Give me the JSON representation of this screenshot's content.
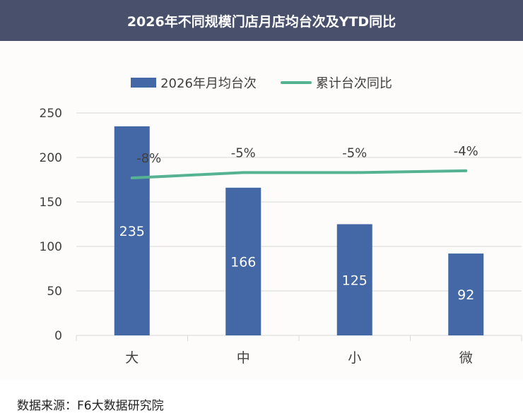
{
  "title": "2026年不同规模门店月店均台次及YTD同比",
  "source": "数据来源：F6大数据研究院",
  "colors": {
    "bar": "#4468a5",
    "line": "#55b393",
    "title_bg": "#48506b",
    "grid": "#d9d9d9"
  },
  "chart_data": {
    "type": "bar",
    "title": "2026年不同规模门店月店均台次及YTD同比",
    "categories": [
      "大",
      "中",
      "小",
      "微"
    ],
    "ylim": [
      0,
      250
    ],
    "yticks": [
      0,
      50,
      100,
      150,
      200,
      250
    ],
    "series": [
      {
        "name": "2026年月均台次",
        "type": "bar",
        "values": [
          235,
          166,
          125,
          92
        ],
        "labels": [
          "235",
          "166",
          "125",
          "92"
        ]
      },
      {
        "name": "累计台次同比",
        "type": "line",
        "values": [
          -8,
          -5,
          -5,
          -4
        ],
        "labels": [
          "-8%",
          "-5%",
          "-5%",
          "-4%"
        ],
        "plotted_on_primary_axis_as": [
          177,
          183,
          183,
          185
        ]
      }
    ],
    "legend_position": "top-center",
    "grid": true
  }
}
